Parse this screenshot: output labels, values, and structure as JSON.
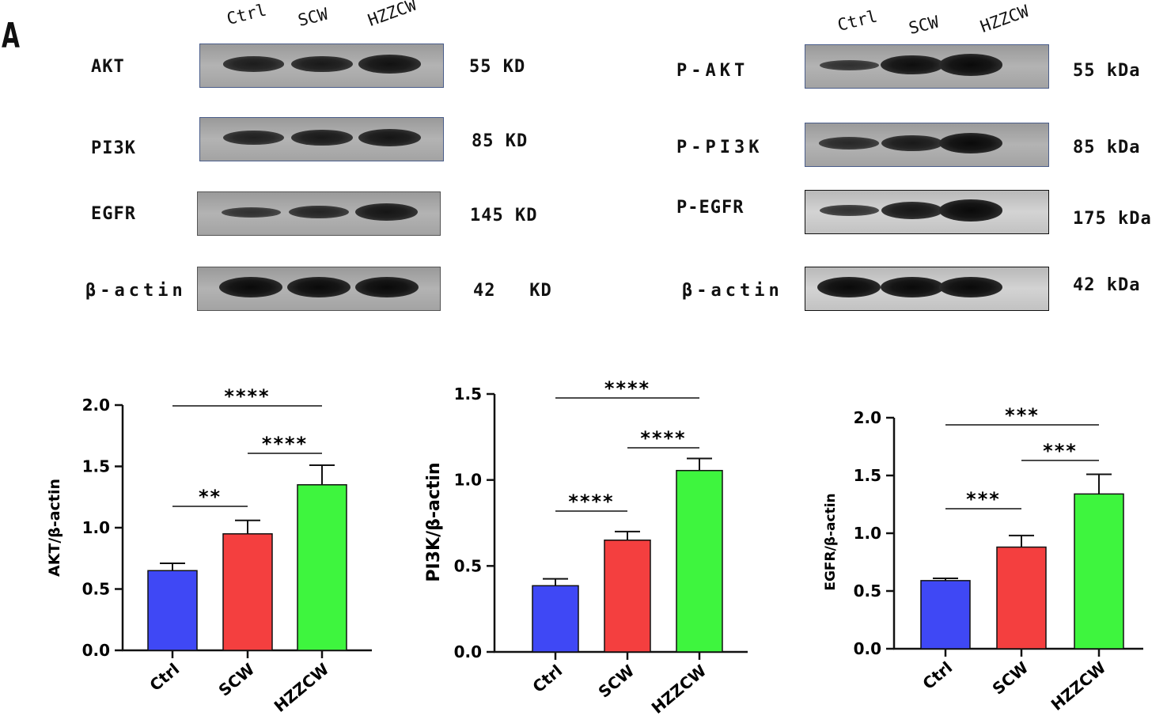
{
  "panel_letter": "A",
  "blots_left": {
    "lanes": [
      "Ctrl",
      "SCW",
      "HZZCW"
    ],
    "rows": [
      {
        "label": "AKT",
        "size": "55 KD",
        "intensity": [
          0.75,
          0.8,
          0.9
        ]
      },
      {
        "label": "PI3K",
        "size": "85 KD",
        "intensity": [
          0.7,
          0.8,
          0.85
        ]
      },
      {
        "label": "EGFR",
        "size": "145 KD",
        "intensity": [
          0.5,
          0.65,
          0.85
        ]
      },
      {
        "label": "β-actin",
        "size": "42   KD",
        "intensity": [
          1.0,
          1.0,
          1.0
        ]
      }
    ]
  },
  "blots_right": {
    "lanes": [
      "Ctrl",
      "SCW",
      "HZZCW"
    ],
    "rows": [
      {
        "label": "P-AKT",
        "size": "55 kDa",
        "intensity": [
          0.5,
          0.95,
          1.05
        ]
      },
      {
        "label": "P-PI3K",
        "size": "85 kDa",
        "intensity": [
          0.6,
          0.8,
          1.0
        ]
      },
      {
        "label": "P-EGFR",
        "size": "175 kDa",
        "intensity": [
          0.55,
          0.85,
          1.05
        ]
      },
      {
        "label": "β-actin",
        "size": "42 kDa",
        "intensity": [
          1.0,
          1.0,
          1.0
        ]
      }
    ]
  },
  "colors": {
    "Ctrl": "#3f48f5",
    "SCW": "#f43f3f",
    "HZZCW": "#3ef53e"
  },
  "chart_data": [
    {
      "type": "bar",
      "categories": [
        "Ctrl",
        "SCW",
        "HZZCW"
      ],
      "values": [
        0.65,
        0.95,
        1.35
      ],
      "errors": [
        0.06,
        0.11,
        0.16
      ],
      "ylabel": "AKT/β-actin",
      "ylim": [
        0,
        2.0
      ],
      "yticks": [
        "0.0",
        "0.5",
        "1.0",
        "1.5",
        "2.0"
      ],
      "significance": [
        {
          "from": 0,
          "to": 1,
          "label": "**"
        },
        {
          "from": 1,
          "to": 2,
          "label": "****"
        },
        {
          "from": 0,
          "to": 2,
          "label": "****"
        }
      ]
    },
    {
      "type": "bar",
      "categories": [
        "Ctrl",
        "SCW",
        "HZZCW"
      ],
      "values": [
        0.385,
        0.65,
        1.055
      ],
      "errors": [
        0.04,
        0.05,
        0.07
      ],
      "ylabel": "PI3K/β-actin",
      "ylim": [
        0,
        1.5
      ],
      "yticks": [
        "0.0",
        "0.5",
        "1.0",
        "1.5"
      ],
      "significance": [
        {
          "from": 0,
          "to": 1,
          "label": "****"
        },
        {
          "from": 1,
          "to": 2,
          "label": "****"
        },
        {
          "from": 0,
          "to": 2,
          "label": "****"
        }
      ]
    },
    {
      "type": "bar",
      "categories": [
        "Ctrl",
        "SCW",
        "HZZCW"
      ],
      "values": [
        0.59,
        0.88,
        1.34
      ],
      "errors": [
        0.02,
        0.1,
        0.17
      ],
      "ylabel": "EGFR/β-actin",
      "ylim": [
        0,
        2.0
      ],
      "yticks": [
        "0.0",
        "0.5",
        "1.0",
        "1.5",
        "2.0"
      ],
      "significance": [
        {
          "from": 0,
          "to": 1,
          "label": "***"
        },
        {
          "from": 1,
          "to": 2,
          "label": "***"
        },
        {
          "from": 0,
          "to": 2,
          "label": "***"
        }
      ]
    }
  ]
}
